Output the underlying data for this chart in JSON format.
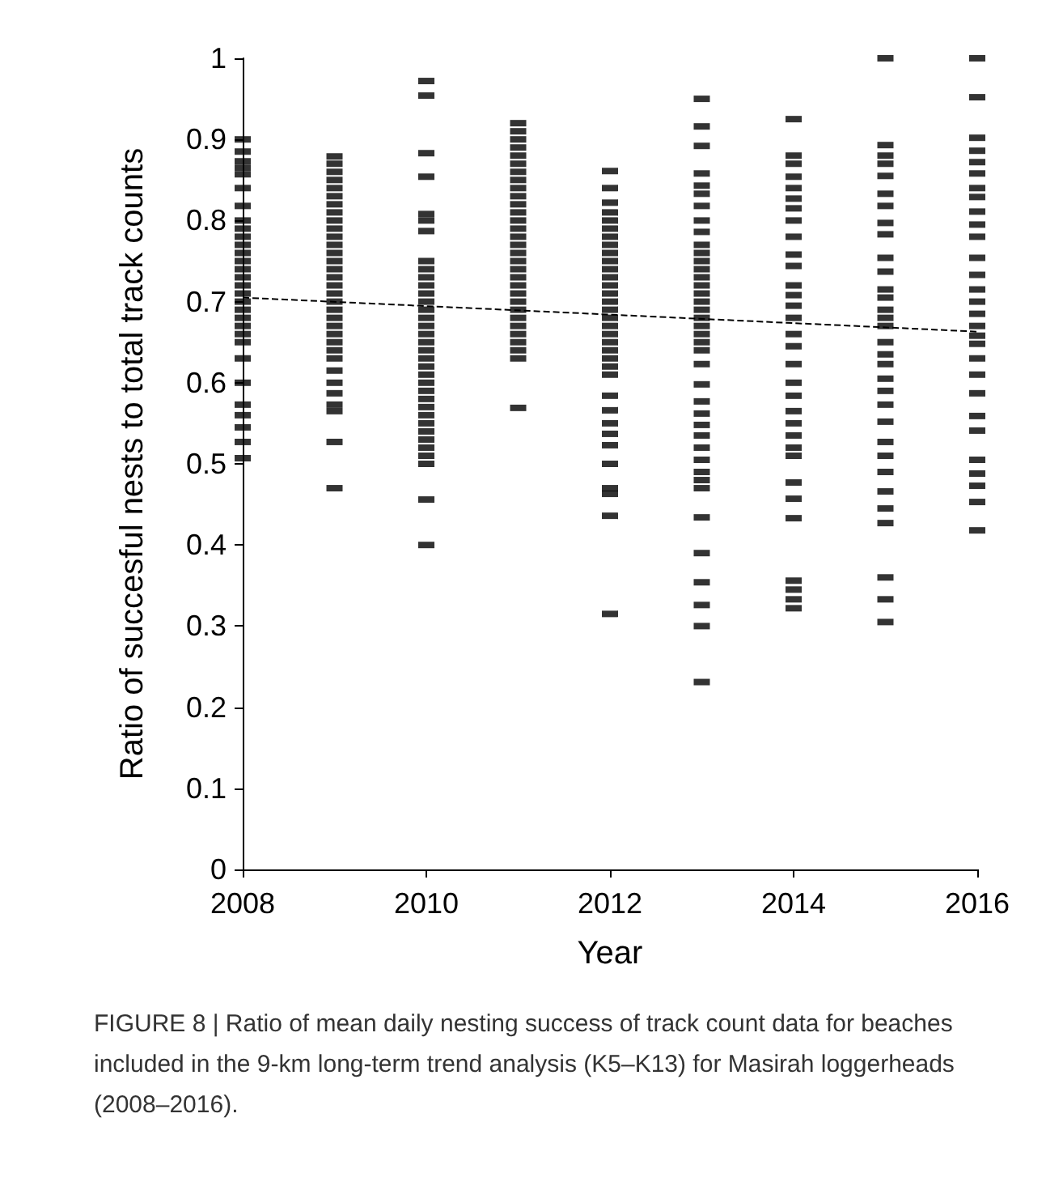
{
  "chart_data": {
    "type": "scatter",
    "xlabel": "Year",
    "ylabel": "Ratio of succesful nests to total track counts",
    "annotations": [
      "FIGURE 8 | Ratio of mean daily nesting success of track count data for beaches included in the 9-km long-term trend analysis (K5–K13) for Masirah loggerheads (2008–2016)."
    ],
    "xlim": [
      2008,
      2016
    ],
    "xticks": [
      2008,
      2010,
      2012,
      2014,
      2016
    ],
    "ylim": [
      0,
      1
    ],
    "yticks": [
      0,
      0.1,
      0.2,
      0.3,
      0.4,
      0.5,
      0.6,
      0.7,
      0.8,
      0.9,
      1
    ],
    "grid": false,
    "marker": "square",
    "series": [
      {
        "color": "#000000",
        "x": [
          2008,
          2008,
          2008,
          2008,
          2008,
          2008,
          2008,
          2008,
          2008,
          2008,
          2008,
          2008,
          2008,
          2008,
          2008,
          2008,
          2008,
          2008,
          2008,
          2008,
          2008,
          2008,
          2008,
          2008,
          2008,
          2008,
          2008,
          2008,
          2008,
          2008,
          2009,
          2009,
          2009,
          2009,
          2009,
          2009,
          2009,
          2009,
          2009,
          2009,
          2009,
          2009,
          2009,
          2009,
          2009,
          2009,
          2009,
          2009,
          2009,
          2009,
          2009,
          2009,
          2009,
          2009,
          2009,
          2009,
          2009,
          2009,
          2009,
          2009,
          2009,
          2009,
          2009,
          2010,
          2010,
          2010,
          2010,
          2010,
          2010,
          2010,
          2010,
          2010,
          2010,
          2010,
          2010,
          2010,
          2010,
          2010,
          2010,
          2010,
          2010,
          2010,
          2010,
          2010,
          2010,
          2010,
          2010,
          2010,
          2010,
          2010,
          2010,
          2010,
          2010,
          2010,
          2010,
          2010,
          2010,
          2010,
          2011,
          2011,
          2011,
          2011,
          2011,
          2011,
          2011,
          2011,
          2011,
          2011,
          2011,
          2011,
          2011,
          2011,
          2011,
          2011,
          2011,
          2011,
          2011,
          2011,
          2011,
          2011,
          2011,
          2011,
          2011,
          2011,
          2011,
          2011,
          2011,
          2011,
          2011,
          2012,
          2012,
          2012,
          2012,
          2012,
          2012,
          2012,
          2012,
          2012,
          2012,
          2012,
          2012,
          2012,
          2012,
          2012,
          2012,
          2012,
          2012,
          2012,
          2012,
          2012,
          2012,
          2012,
          2012,
          2012,
          2012,
          2012,
          2012,
          2012,
          2012,
          2012,
          2012,
          2012,
          2012,
          2013,
          2013,
          2013,
          2013,
          2013,
          2013,
          2013,
          2013,
          2013,
          2013,
          2013,
          2013,
          2013,
          2013,
          2013,
          2013,
          2013,
          2013,
          2013,
          2013,
          2013,
          2013,
          2013,
          2013,
          2013,
          2013,
          2013,
          2013,
          2013,
          2013,
          2013,
          2013,
          2013,
          2013,
          2013,
          2013,
          2013,
          2013,
          2013,
          2013,
          2014,
          2014,
          2014,
          2014,
          2014,
          2014,
          2014,
          2014,
          2014,
          2014,
          2014,
          2014,
          2014,
          2014,
          2014,
          2014,
          2014,
          2014,
          2014,
          2014,
          2014,
          2014,
          2014,
          2014,
          2014,
          2014,
          2014,
          2014,
          2014,
          2014,
          2014,
          2014,
          2015,
          2015,
          2015,
          2015,
          2015,
          2015,
          2015,
          2015,
          2015,
          2015,
          2015,
          2015,
          2015,
          2015,
          2015,
          2015,
          2015,
          2015,
          2015,
          2015,
          2015,
          2015,
          2015,
          2015,
          2015,
          2015,
          2015,
          2015,
          2015,
          2015,
          2015,
          2015,
          2016,
          2016,
          2016,
          2016,
          2016,
          2016,
          2016,
          2016,
          2016,
          2016,
          2016,
          2016,
          2016,
          2016,
          2016,
          2016,
          2016,
          2016,
          2016,
          2016,
          2016,
          2016,
          2016,
          2016,
          2016,
          2016,
          2016,
          2016,
          2016
        ],
        "values": [
          0.9,
          0.885,
          0.873,
          0.865,
          0.857,
          0.84,
          0.818,
          0.8,
          0.79,
          0.78,
          0.77,
          0.76,
          0.75,
          0.74,
          0.73,
          0.72,
          0.71,
          0.7,
          0.69,
          0.68,
          0.67,
          0.66,
          0.65,
          0.63,
          0.6,
          0.573,
          0.56,
          0.545,
          0.527,
          0.507,
          0.879,
          0.87,
          0.86,
          0.85,
          0.84,
          0.83,
          0.82,
          0.81,
          0.8,
          0.79,
          0.78,
          0.77,
          0.76,
          0.75,
          0.74,
          0.73,
          0.72,
          0.71,
          0.7,
          0.69,
          0.68,
          0.67,
          0.66,
          0.65,
          0.64,
          0.63,
          0.615,
          0.6,
          0.587,
          0.573,
          0.565,
          0.527,
          0.47,
          0.972,
          0.954,
          0.883,
          0.854,
          0.808,
          0.8,
          0.787,
          0.75,
          0.74,
          0.73,
          0.72,
          0.71,
          0.7,
          0.69,
          0.68,
          0.67,
          0.66,
          0.65,
          0.64,
          0.63,
          0.62,
          0.61,
          0.6,
          0.59,
          0.58,
          0.57,
          0.56,
          0.55,
          0.54,
          0.53,
          0.52,
          0.51,
          0.5,
          0.456,
          0.4,
          0.92,
          0.91,
          0.9,
          0.89,
          0.88,
          0.87,
          0.86,
          0.85,
          0.84,
          0.83,
          0.82,
          0.81,
          0.8,
          0.79,
          0.78,
          0.77,
          0.76,
          0.75,
          0.74,
          0.73,
          0.72,
          0.71,
          0.7,
          0.69,
          0.68,
          0.67,
          0.66,
          0.65,
          0.64,
          0.63,
          0.569,
          0.861,
          0.84,
          0.822,
          0.81,
          0.8,
          0.79,
          0.78,
          0.77,
          0.76,
          0.75,
          0.74,
          0.73,
          0.72,
          0.71,
          0.7,
          0.69,
          0.68,
          0.67,
          0.66,
          0.65,
          0.64,
          0.63,
          0.62,
          0.61,
          0.584,
          0.566,
          0.55,
          0.537,
          0.523,
          0.5,
          0.47,
          0.463,
          0.436,
          0.315,
          0.95,
          0.916,
          0.892,
          0.858,
          0.843,
          0.833,
          0.818,
          0.8,
          0.786,
          0.77,
          0.76,
          0.75,
          0.74,
          0.73,
          0.72,
          0.71,
          0.7,
          0.69,
          0.68,
          0.67,
          0.66,
          0.65,
          0.64,
          0.623,
          0.598,
          0.577,
          0.562,
          0.548,
          0.535,
          0.52,
          0.505,
          0.49,
          0.48,
          0.47,
          0.434,
          0.39,
          0.354,
          0.326,
          0.3,
          0.231,
          0.925,
          0.88,
          0.87,
          0.854,
          0.84,
          0.827,
          0.815,
          0.8,
          0.78,
          0.758,
          0.744,
          0.72,
          0.708,
          0.695,
          0.68,
          0.66,
          0.645,
          0.623,
          0.6,
          0.584,
          0.565,
          0.55,
          0.535,
          0.52,
          0.51,
          0.477,
          0.457,
          0.433,
          0.356,
          0.345,
          0.333,
          0.322,
          1,
          0.893,
          0.88,
          0.87,
          0.855,
          0.833,
          0.818,
          0.797,
          0.783,
          0.754,
          0.737,
          0.715,
          0.705,
          0.69,
          0.68,
          0.67,
          0.65,
          0.635,
          0.623,
          0.605,
          0.59,
          0.573,
          0.552,
          0.527,
          0.51,
          0.49,
          0.466,
          0.445,
          0.427,
          0.36,
          0.333,
          0.305,
          1,
          0.952,
          0.902,
          0.886,
          0.872,
          0.858,
          0.84,
          0.829,
          0.811,
          0.795,
          0.78,
          0.754,
          0.733,
          0.715,
          0.7,
          0.685,
          0.67,
          0.658,
          0.648,
          0.63,
          0.61,
          0.587,
          0.559,
          0.541,
          0.505,
          0.488,
          0.473,
          0.453,
          0.418
        ]
      },
      {
        "type": "line",
        "color": "#000000",
        "line_style": "dashed",
        "marker": "none",
        "x": [
          2008,
          2016
        ],
        "values": [
          0.705,
          0.663
        ]
      }
    ]
  }
}
